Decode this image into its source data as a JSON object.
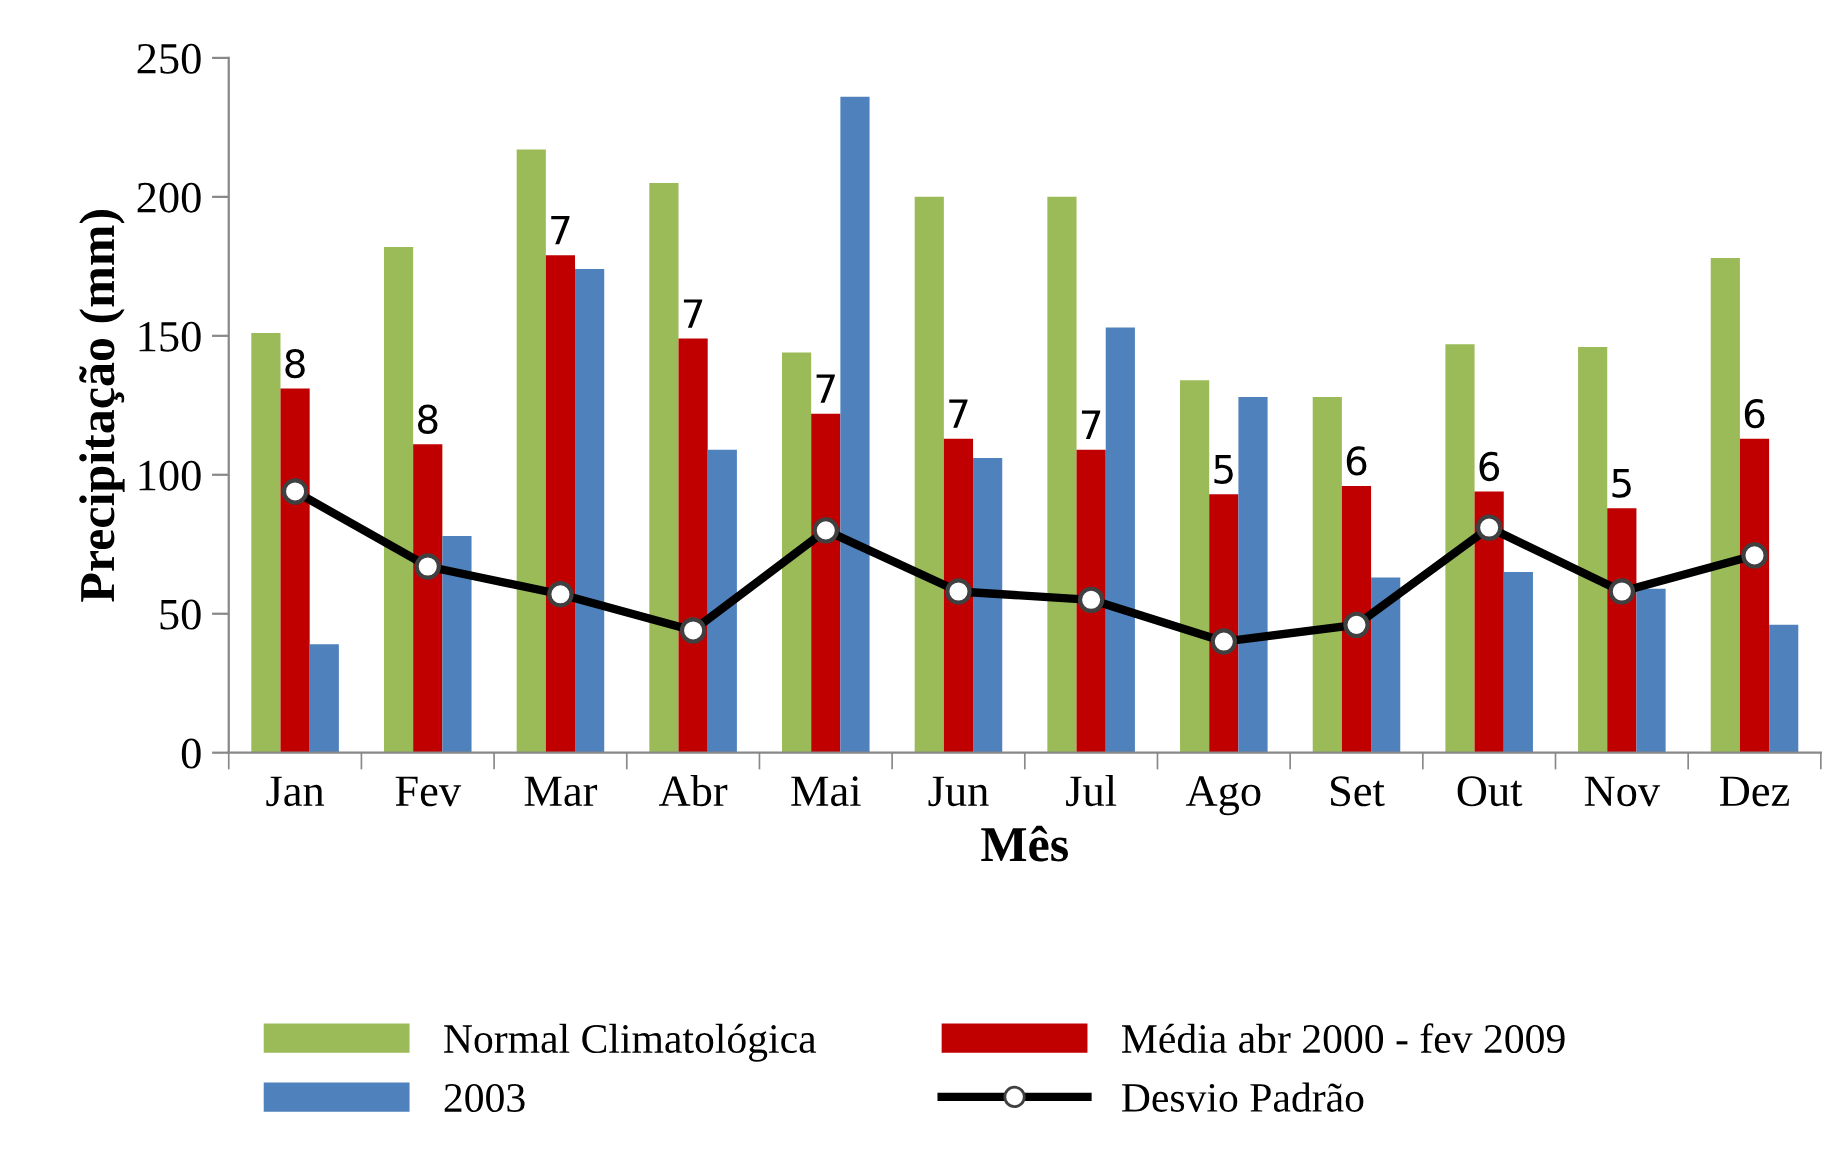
{
  "chart_data": {
    "type": "bar",
    "xlabel": "Mês",
    "ylabel": "Precipitação (mm)",
    "categories": [
      "Jan",
      "Fev",
      "Mar",
      "Abr",
      "Mai",
      "Jun",
      "Jul",
      "Ago",
      "Set",
      "Out",
      "Nov",
      "Dez"
    ],
    "series": [
      {
        "name": "Normal Climatológica",
        "color": "#9bbb59",
        "values": [
          151,
          182,
          217,
          205,
          144,
          200,
          200,
          134,
          128,
          147,
          146,
          178
        ]
      },
      {
        "name": "Média abr 2000 - fev 2009",
        "color": "#c00000",
        "values": [
          131,
          111,
          179,
          149,
          122,
          113,
          109,
          93,
          96,
          94,
          88,
          113
        ]
      },
      {
        "name": "2003",
        "color": "#4f81bd",
        "values": [
          39,
          78,
          174,
          109,
          236,
          106,
          153,
          128,
          63,
          65,
          59,
          46
        ]
      },
      {
        "name": "Desvio Padrão",
        "type": "line",
        "color": "#000000",
        "marker": "circle",
        "values": [
          94,
          67,
          57,
          44,
          80,
          58,
          55,
          40,
          46,
          81,
          58,
          71
        ]
      }
    ],
    "ylim": [
      0,
      250
    ],
    "yticks": [
      0,
      50,
      100,
      150,
      200,
      250
    ],
    "grid": false,
    "legend": "bottom",
    "annotations": [
      {
        "text": "8",
        "x": "Jan",
        "y": 131
      },
      {
        "text": "8",
        "x": "Fev",
        "y": 111
      },
      {
        "text": "7",
        "x": "Mar",
        "y": 179
      },
      {
        "text": "7",
        "x": "Abr",
        "y": 149
      },
      {
        "text": "7",
        "x": "Mai",
        "y": 122
      },
      {
        "text": "7",
        "x": "Jun",
        "y": 113
      },
      {
        "text": "7",
        "x": "Jul",
        "y": 109
      },
      {
        "text": "5",
        "x": "Ago",
        "y": 93
      },
      {
        "text": "6",
        "x": "Set",
        "y": 96
      },
      {
        "text": "6",
        "x": "Out",
        "y": 94
      },
      {
        "text": "5",
        "x": "Nov",
        "y": 88
      },
      {
        "text": "6",
        "x": "Dez",
        "y": 113
      }
    ]
  }
}
